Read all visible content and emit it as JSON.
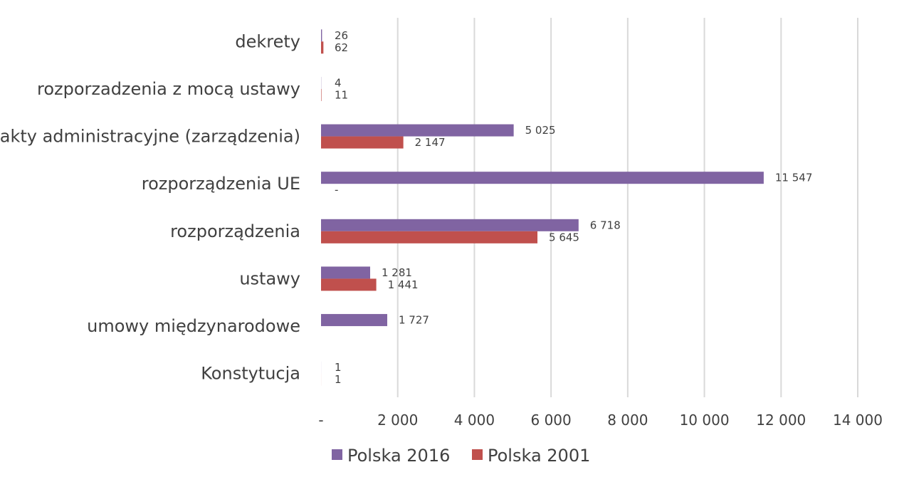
{
  "chart_data": {
    "type": "bar",
    "orientation": "horizontal",
    "categories": [
      "dekrety",
      "rozporzadzenia z mocą ustawy",
      "akty administracyjne (zarządzenia)",
      "rozporządzenia UE",
      "rozporządzenia",
      "ustawy",
      "umowy międzynarodowe",
      "Konstytucja"
    ],
    "series": [
      {
        "name": "Polska 2016",
        "color": "#8064a2",
        "values": [
          26,
          4,
          5025,
          11547,
          6718,
          1281,
          1727,
          1
        ],
        "labels": [
          "26",
          "4",
          "5 025",
          "11 547",
          "6 718",
          "1 281",
          "1 727",
          "1"
        ]
      },
      {
        "name": "Polska 2001",
        "color": "#c0504d",
        "values": [
          62,
          11,
          2147,
          0,
          5645,
          1441,
          0,
          1
        ],
        "labels": [
          "62",
          "11",
          "2 147",
          "-",
          "5 645",
          "1 441",
          "",
          "1"
        ]
      }
    ],
    "xlim": [
      0,
      14000
    ],
    "ticks": [
      0,
      2000,
      4000,
      6000,
      8000,
      10000,
      12000,
      14000
    ],
    "tick_labels": [
      "-",
      "2 000",
      "4 000",
      "6 000",
      "8 000",
      "10 000",
      "12 000",
      "14 000"
    ],
    "grid": true,
    "legend_position": "bottom"
  }
}
